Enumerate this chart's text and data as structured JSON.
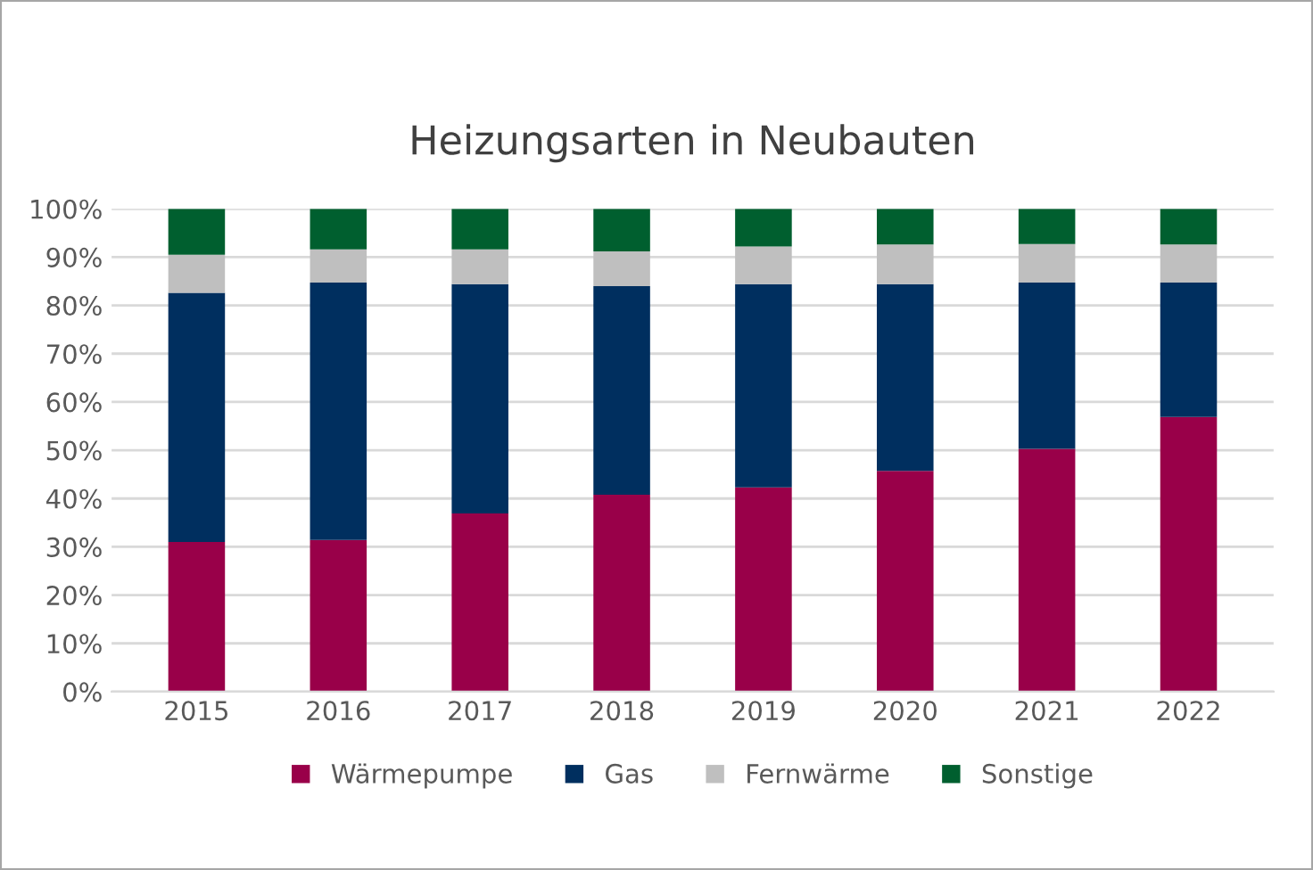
{
  "chart_data": {
    "type": "bar",
    "title": "Heizungsarten in Neubauten",
    "stacked": true,
    "categories": [
      "2015",
      "2016",
      "2017",
      "2018",
      "2019",
      "2020",
      "2021",
      "2022"
    ],
    "series": [
      {
        "name": "Wärmepumpe",
        "color": "#990049",
        "values": [
          31.0,
          31.4,
          36.9,
          40.8,
          42.3,
          45.7,
          50.3,
          56.9
        ]
      },
      {
        "name": "Gas",
        "color": "#002f5f",
        "values": [
          51.6,
          53.3,
          47.5,
          43.2,
          42.1,
          38.7,
          34.4,
          27.8
        ]
      },
      {
        "name": "Fernwärme",
        "color": "#bfbfbf",
        "values": [
          7.9,
          6.9,
          7.2,
          7.2,
          7.8,
          8.2,
          8.0,
          7.9
        ]
      },
      {
        "name": "Sonstige",
        "color": "#005f2f",
        "values": [
          9.5,
          8.4,
          8.4,
          8.8,
          7.8,
          7.4,
          7.3,
          7.4
        ]
      }
    ],
    "ylim": [
      0,
      100
    ],
    "yticks": [
      {
        "value": 0,
        "label": "0%"
      },
      {
        "value": 10,
        "label": "10%"
      },
      {
        "value": 20,
        "label": "20%"
      },
      {
        "value": 30,
        "label": "30%"
      },
      {
        "value": 40,
        "label": "40%"
      },
      {
        "value": 50,
        "label": "50%"
      },
      {
        "value": 60,
        "label": "60%"
      },
      {
        "value": 70,
        "label": "70%"
      },
      {
        "value": 80,
        "label": "80%"
      },
      {
        "value": 90,
        "label": "90%"
      },
      {
        "value": 100,
        "label": "100%"
      }
    ],
    "grid": "y",
    "legend": "bottom"
  }
}
